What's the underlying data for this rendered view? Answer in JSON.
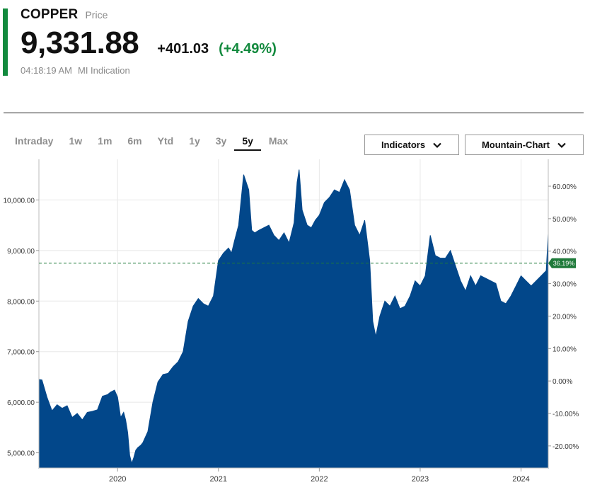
{
  "header": {
    "name": "COPPER",
    "name_sub": "Price",
    "price": "9,331.88",
    "change": "+401.03",
    "change_pct": "(+4.49%)",
    "time": "04:18:19 AM",
    "source": "MI Indication"
  },
  "colors": {
    "accent": "#138a3e",
    "positive": "#138a3e",
    "area_fill": "#02478a",
    "grid": "#e8e8e8",
    "baseline": "#1f7a3a"
  },
  "tabs": [
    {
      "label": "Intraday"
    },
    {
      "label": "1w"
    },
    {
      "label": "1m"
    },
    {
      "label": "6m"
    },
    {
      "label": "Ytd"
    },
    {
      "label": "1y"
    },
    {
      "label": "3y"
    },
    {
      "label": "5y",
      "active": true
    },
    {
      "label": "Max"
    }
  ],
  "controls": {
    "indicators_label": "Indicators",
    "indicators_icon": "chevron-down-icon",
    "chart_mode_label": "Mountain-Chart",
    "chart_mode_icon": "chevron-down-icon"
  },
  "chart_data": {
    "type": "area",
    "x_range": [
      2019.22,
      2024.27
    ],
    "ylim": [
      4700,
      10720
    ],
    "grid": true,
    "x_ticks": [
      {
        "x": 2020,
        "label": "2020"
      },
      {
        "x": 2021,
        "label": "2021"
      },
      {
        "x": 2022,
        "label": "2022"
      },
      {
        "x": 2023,
        "label": "2023"
      },
      {
        "x": 2024,
        "label": "2024"
      }
    ],
    "y_ticks_left": [
      {
        "v": 5000,
        "label": "5,000.00"
      },
      {
        "v": 6000,
        "label": "6,000.00"
      },
      {
        "v": 7000,
        "label": "7,000.00"
      },
      {
        "v": 8000,
        "label": "8,000.00"
      },
      {
        "v": 9000,
        "label": "9,000.00"
      },
      {
        "v": 10000,
        "label": "10,000.00"
      }
    ],
    "y_ticks_right": [
      {
        "v": 60,
        "label": "60.00%"
      },
      {
        "v": 50,
        "label": "50.00%"
      },
      {
        "v": 40,
        "label": "40.00%"
      },
      {
        "v": 30,
        "label": "30.00%"
      },
      {
        "v": 20,
        "label": "20.00%"
      },
      {
        "v": 10,
        "label": "10.00%"
      },
      {
        "v": 0,
        "label": "0.00%"
      },
      {
        "v": -10,
        "label": "-10.00%"
      },
      {
        "v": -20,
        "label": "-20.00%"
      }
    ],
    "right_axis_zero_value": 6420,
    "reference_line": {
      "value": 8750,
      "label": "36.19%"
    },
    "x": [
      2019.22,
      2019.25,
      2019.3,
      2019.35,
      2019.4,
      2019.45,
      2019.5,
      2019.55,
      2019.6,
      2019.65,
      2019.7,
      2019.75,
      2019.8,
      2019.85,
      2019.9,
      2019.93,
      2019.97,
      2020.0,
      2020.03,
      2020.06,
      2020.08,
      2020.1,
      2020.12,
      2020.14,
      2020.16,
      2020.18,
      2020.2,
      2020.23,
      2020.25,
      2020.3,
      2020.35,
      2020.4,
      2020.45,
      2020.5,
      2020.55,
      2020.6,
      2020.65,
      2020.7,
      2020.75,
      2020.8,
      2020.85,
      2020.9,
      2020.95,
      2021.0,
      2021.05,
      2021.1,
      2021.13,
      2021.16,
      2021.2,
      2021.25,
      2021.3,
      2021.33,
      2021.36,
      2021.4,
      2021.45,
      2021.5,
      2021.55,
      2021.6,
      2021.65,
      2021.7,
      2021.75,
      2021.78,
      2021.8,
      2021.83,
      2021.88,
      2021.92,
      2021.96,
      2022.0,
      2022.05,
      2022.1,
      2022.15,
      2022.2,
      2022.25,
      2022.3,
      2022.35,
      2022.4,
      2022.45,
      2022.5,
      2022.53,
      2022.56,
      2022.6,
      2022.65,
      2022.7,
      2022.75,
      2022.8,
      2022.85,
      2022.9,
      2022.95,
      2023.0,
      2023.05,
      2023.1,
      2023.15,
      2023.2,
      2023.25,
      2023.3,
      2023.35,
      2023.4,
      2023.45,
      2023.5,
      2023.55,
      2023.6,
      2023.65,
      2023.7,
      2023.75,
      2023.8,
      2023.85,
      2023.9,
      2023.95,
      2024.0,
      2024.05,
      2024.1,
      2024.15,
      2024.2,
      2024.25,
      2024.27
    ],
    "values": [
      6450,
      6440,
      6100,
      5830,
      5950,
      5880,
      5930,
      5700,
      5780,
      5650,
      5800,
      5820,
      5850,
      6120,
      6150,
      6200,
      6240,
      6100,
      5700,
      5800,
      5650,
      5400,
      4950,
      4790,
      4900,
      5050,
      5100,
      5150,
      5200,
      5420,
      6000,
      6400,
      6550,
      6570,
      6700,
      6800,
      7000,
      7600,
      7900,
      8050,
      7950,
      7900,
      8100,
      8800,
      8950,
      9050,
      8950,
      9200,
      9500,
      10500,
      10200,
      9400,
      9350,
      9400,
      9450,
      9500,
      9300,
      9200,
      9350,
      9150,
      9550,
      10350,
      10600,
      9800,
      9500,
      9450,
      9600,
      9700,
      9950,
      10050,
      10200,
      10150,
      10400,
      10200,
      9500,
      9300,
      9600,
      8800,
      7600,
      7300,
      7700,
      8000,
      7900,
      8100,
      7850,
      7900,
      8100,
      8400,
      8300,
      8500,
      9300,
      8900,
      8850,
      8850,
      9000,
      8700,
      8400,
      8200,
      8500,
      8300,
      8500,
      8450,
      8400,
      8350,
      8000,
      7950,
      8100,
      8300,
      8500,
      8400,
      8300,
      8400,
      8500,
      8600,
      9330
    ]
  }
}
